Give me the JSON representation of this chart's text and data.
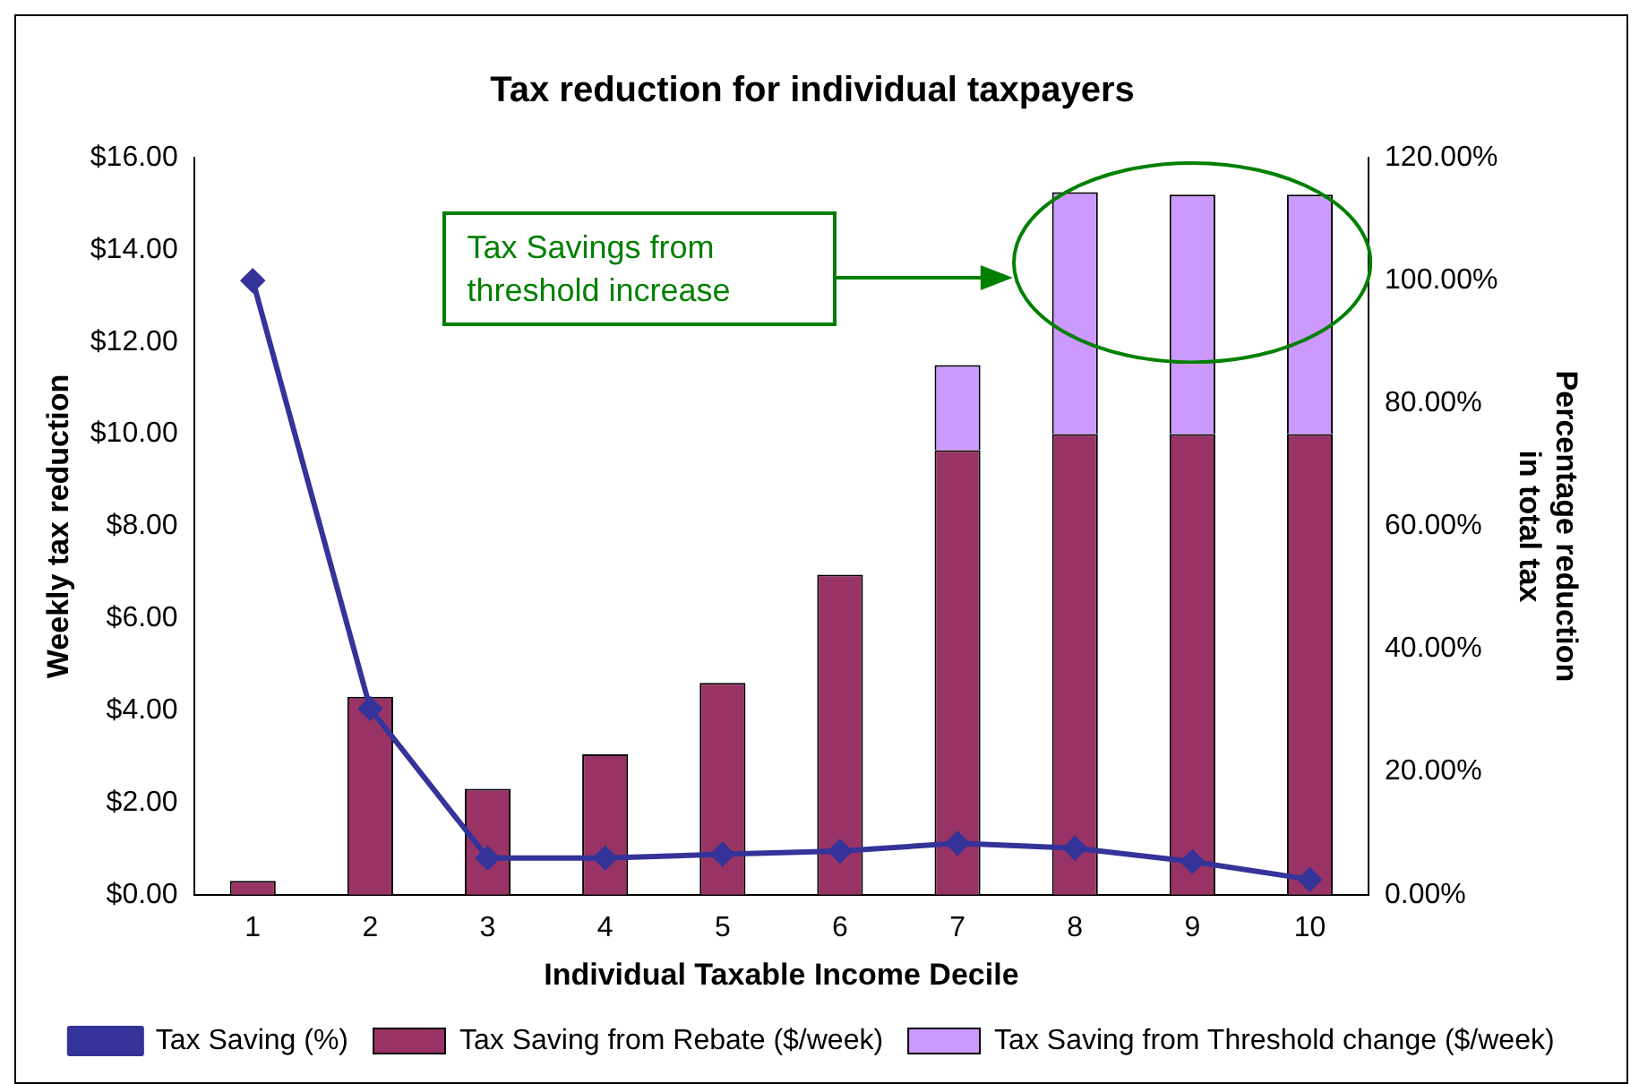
{
  "chart_data": {
    "type": "bar",
    "title": "Tax reduction for individual taxpayers",
    "xlabel": "Individual Taxable Income Decile",
    "ylabel": "Weekly tax reduction",
    "y2label": "Percentage reduction in total tax",
    "categories": [
      "1",
      "2",
      "3",
      "4",
      "5",
      "6",
      "7",
      "8",
      "9",
      "10"
    ],
    "stacked": true,
    "series": [
      {
        "name": "Tax Saving from Rebate ($/week)",
        "color": "#993366",
        "values": [
          0.3,
          4.3,
          2.3,
          3.05,
          4.6,
          6.95,
          9.65,
          10.0,
          10.0,
          10.0
        ]
      },
      {
        "name": "Tax Saving from Threshold change ($/week)",
        "color": "#cc99ff",
        "values": [
          null,
          null,
          null,
          null,
          null,
          null,
          1.85,
          5.25,
          5.2,
          5.2
        ]
      },
      {
        "name": "Tax Saving (%)",
        "type": "line",
        "axis": "y2",
        "marker": "diamond",
        "color": "#333399",
        "values": [
          100,
          30.3,
          6,
          6,
          6.6,
          7.1,
          8.4,
          7.6,
          5.4,
          2.5
        ]
      }
    ],
    "ylim": [
      0,
      16
    ],
    "yticks": [
      {
        "value": 0,
        "label": "$0.00"
      },
      {
        "value": 2,
        "label": "$2.00"
      },
      {
        "value": 4,
        "label": "$4.00"
      },
      {
        "value": 6,
        "label": "$6.00"
      },
      {
        "value": 8,
        "label": "$8.00"
      },
      {
        "value": 10,
        "label": "$10.00"
      },
      {
        "value": 12,
        "label": "$12.00"
      },
      {
        "value": 14,
        "label": "$14.00"
      },
      {
        "value": 16,
        "label": "$16.00"
      }
    ],
    "y2lim": [
      0,
      120
    ],
    "y2ticks": [
      {
        "value": 0,
        "label": "0.00%"
      },
      {
        "value": 20,
        "label": "20.00%"
      },
      {
        "value": 40,
        "label": "40.00%"
      },
      {
        "value": 60,
        "label": "60.00%"
      },
      {
        "value": 80,
        "label": "80.00%"
      },
      {
        "value": 100,
        "label": "100.00%"
      },
      {
        "value": 120,
        "label": "120.00%"
      }
    ],
    "annotations": [
      "Tax Savings from threshold increase"
    ],
    "grid": false,
    "legend": "bottom"
  }
}
